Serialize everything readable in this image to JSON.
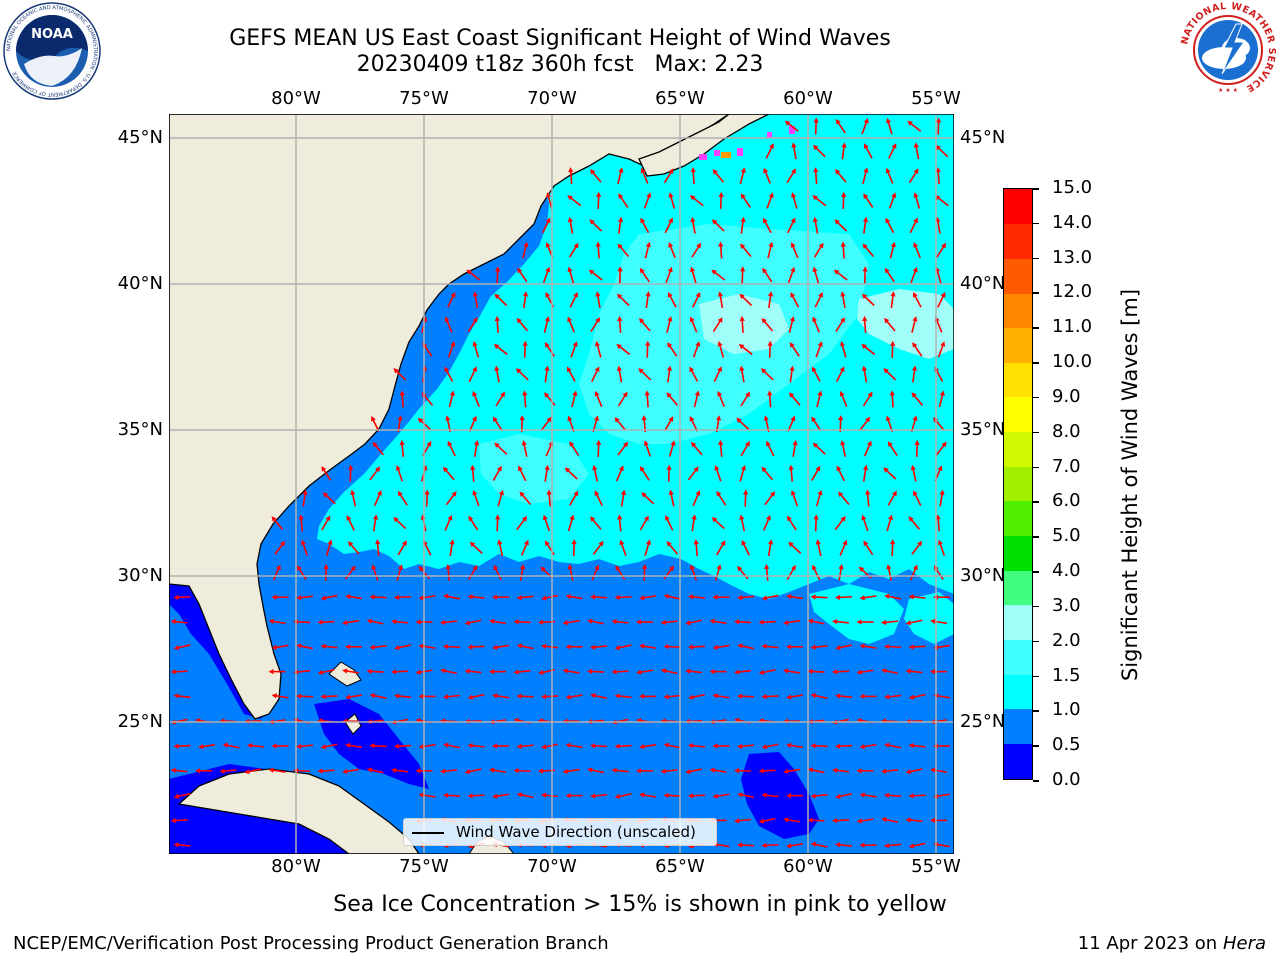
{
  "header": {
    "title_line1": "GEFS MEAN US East Coast Significant Height of Wind Waves",
    "title_line2": "20230409 t18z 360h fcst   Max: 2.23"
  },
  "map": {
    "lon_ticks": [
      "80°W",
      "75°W",
      "70°W",
      "65°W",
      "60°W",
      "55°W"
    ],
    "lat_ticks": [
      "45°N",
      "40°N",
      "35°N",
      "30°N",
      "25°N"
    ],
    "land_color": "#efecdc",
    "gridline_color": "#b0b0b0",
    "arrow_color": "#ff0000"
  },
  "legend": {
    "label": "Wind Wave Direction (unscaled)"
  },
  "colorbar": {
    "title": "Significant Height of Wind Waves [m]",
    "tick_labels": [
      "0.0",
      "0.5",
      "1.0",
      "1.5",
      "2.0",
      "3.0",
      "4.0",
      "5.0",
      "6.0",
      "7.0",
      "8.0",
      "9.0",
      "10.0",
      "11.0",
      "12.0",
      "13.0",
      "14.0",
      "15.0"
    ],
    "colors": [
      "#0000ff",
      "#0080ff",
      "#00ffff",
      "#40ffff",
      "#a0fff8",
      "#40ff80",
      "#00e000",
      "#50f000",
      "#a0f000",
      "#d0f800",
      "#ffff00",
      "#ffe000",
      "#ffb000",
      "#ff8800",
      "#ff5a00",
      "#ff2800",
      "#ff0000"
    ]
  },
  "note": "Sea Ice Concentration > 15% is shown in pink to yellow",
  "footer": {
    "left": "NCEP/EMC/Verification Post Processing Product Generation Branch",
    "date": "11 Apr 2023 on ",
    "machine": "Hera"
  },
  "logos": {
    "noaa_text": "NOAA",
    "noaa_ring_text": "NATIONAL OCEANIC AND ATMOSPHERIC ADMINISTRATION · U.S. DEPARTMENT OF COMMERCE",
    "nws_ring_text": "NATIONAL WEATHER SERVICE"
  }
}
